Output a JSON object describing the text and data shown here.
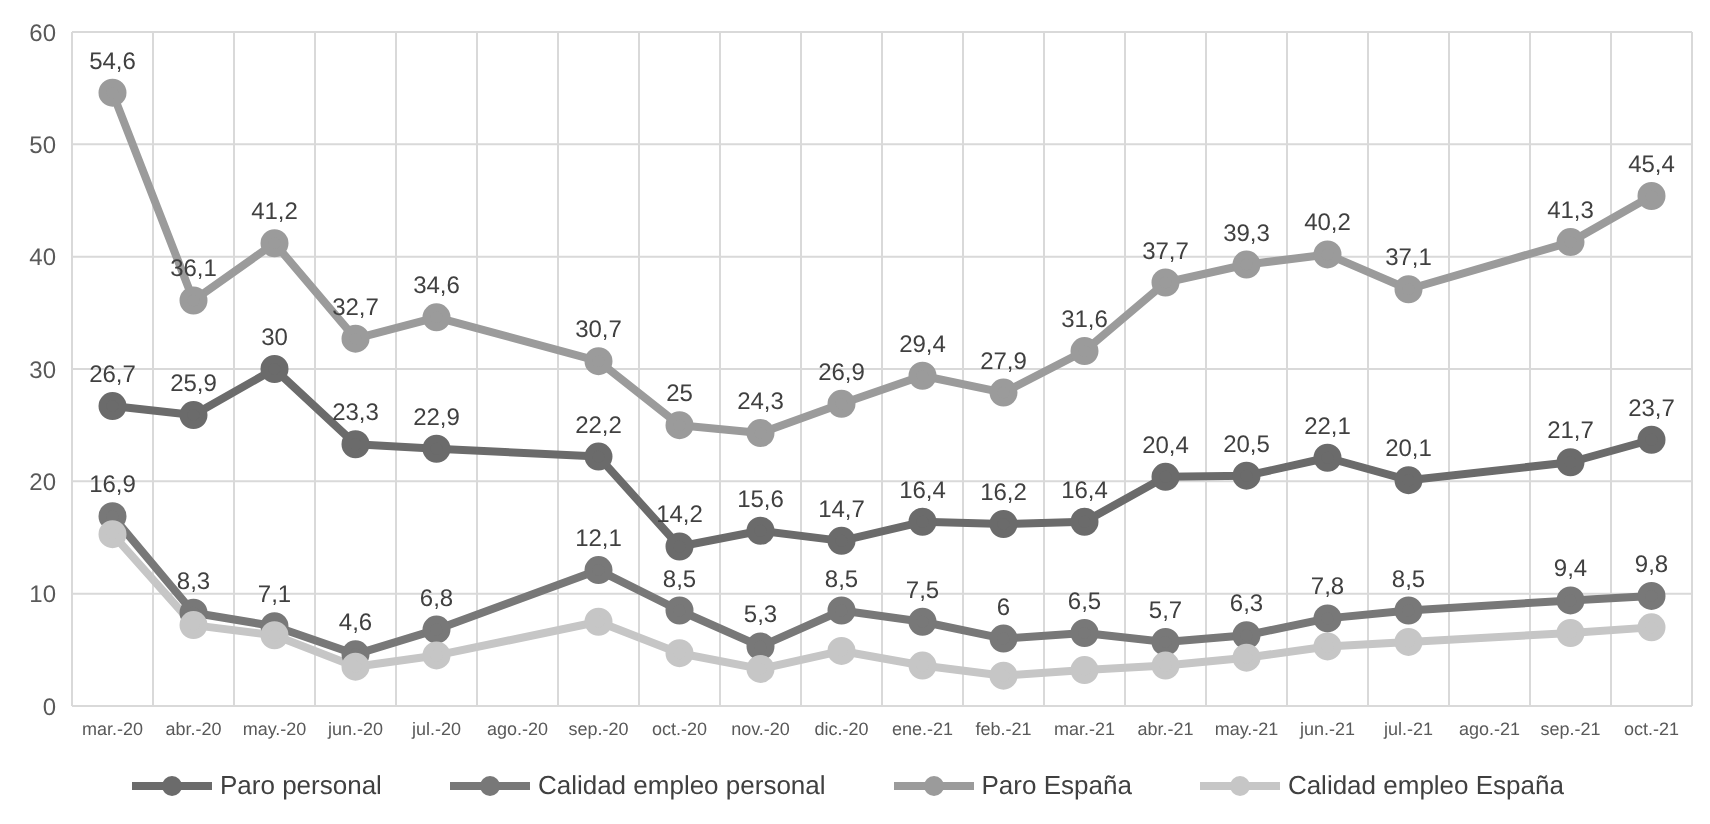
{
  "chart_data": {
    "type": "line",
    "categories": [
      "mar.-20",
      "abr.-20",
      "may.-20",
      "jun.-20",
      "jul.-20",
      "ago.-20",
      "sep.-20",
      "oct.-20",
      "nov.-20",
      "dic.-20",
      "ene.-21",
      "feb.-21",
      "mar.-21",
      "abr.-21",
      "may.-21",
      "jun.-21",
      "jul.-21",
      "ago.-21",
      "sep.-21",
      "oct.-21"
    ],
    "series": [
      {
        "name": "Paro personal",
        "color": "#6b6b6b",
        "values": [
          26.7,
          25.9,
          30,
          23.3,
          22.9,
          null,
          22.2,
          14.2,
          15.6,
          14.7,
          16.4,
          16.2,
          16.4,
          20.4,
          20.5,
          22.1,
          20.1,
          null,
          21.7,
          23.7
        ],
        "value_labels": [
          "26,7",
          "25,9",
          "30",
          "23,3",
          "22,9",
          null,
          "22,2",
          "14,2",
          "15,6",
          "14,7",
          "16,4",
          "16,2",
          "16,4",
          "20,4",
          "20,5",
          "22,1",
          "20,1",
          null,
          "21,7",
          "23,7"
        ]
      },
      {
        "name": "Calidad empleo personal",
        "color": "#787878",
        "values": [
          16.9,
          8.3,
          7.1,
          4.6,
          6.8,
          null,
          12.1,
          8.5,
          5.3,
          8.5,
          7.5,
          6,
          6.5,
          5.7,
          6.3,
          7.8,
          8.5,
          null,
          9.4,
          9.8
        ],
        "value_labels": [
          "16,9",
          "8,3",
          "7,1",
          "4,6",
          "6,8",
          null,
          "12,1",
          "8,5",
          "5,3",
          "8,5",
          "7,5",
          "6",
          "6,5",
          "5,7",
          "6,3",
          "7,8",
          "8,5",
          null,
          "9,4",
          "9,8"
        ]
      },
      {
        "name": "Paro España",
        "color": "#9b9b9b",
        "values": [
          54.6,
          36.1,
          41.2,
          32.7,
          34.6,
          null,
          30.7,
          25,
          24.3,
          26.9,
          29.4,
          27.9,
          31.6,
          37.7,
          39.3,
          40.2,
          37.1,
          null,
          41.3,
          45.4
        ],
        "value_labels": [
          "54,6",
          "36,1",
          "41,2",
          "32,7",
          "34,6",
          null,
          "30,7",
          "25",
          "24,3",
          "26,9",
          "29,4",
          "27,9",
          "31,6",
          "37,7",
          "39,3",
          "40,2",
          "37,1",
          null,
          "41,3",
          "45,4"
        ]
      },
      {
        "name": "Calidad empleo España",
        "color": "#c6c6c6",
        "values": [
          15.3,
          7.2,
          6.3,
          3.5,
          4.5,
          null,
          7.5,
          4.7,
          3.3,
          4.9,
          3.6,
          2.7,
          3.2,
          3.6,
          4.3,
          5.3,
          5.7,
          null,
          6.5,
          7.0
        ]
      }
    ],
    "ylim": [
      0,
      60
    ],
    "yticks": [
      0,
      10,
      20,
      30,
      40,
      50,
      60
    ],
    "grid": true,
    "legend": "bottom",
    "marker": "circle",
    "line_style": "solid"
  }
}
